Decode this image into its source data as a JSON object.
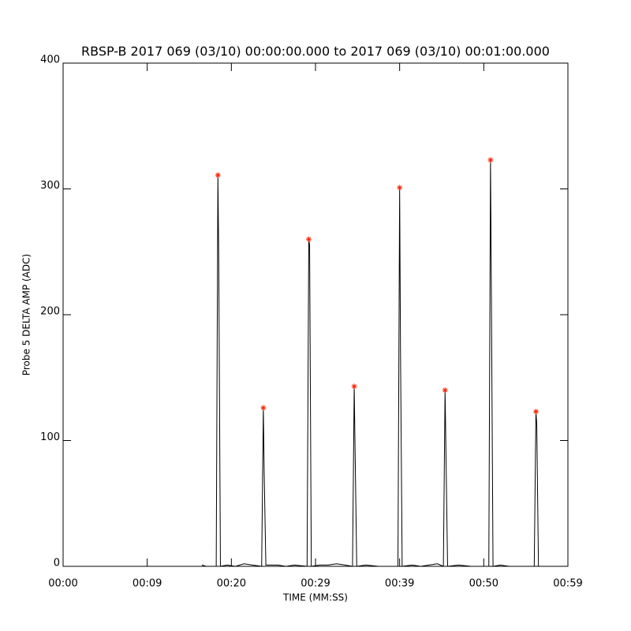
{
  "chart_data": {
    "type": "line",
    "title": "RBSP-B 2017 069 (03/10) 00:00:00.000 to 2017 069 (03/10) 00:01:00.000",
    "x_label": "TIME (MM:SS)",
    "y_label": "Probe 5 DELTA AMP (ADC)",
    "xlim": [
      0,
      60
    ],
    "xticks": [
      {
        "value": 0,
        "label": "00:00"
      },
      {
        "value": 10,
        "label": "00:09"
      },
      {
        "value": 20,
        "label": "00:20"
      },
      {
        "value": 30,
        "label": "00:29"
      },
      {
        "value": 40,
        "label": "00:39"
      },
      {
        "value": 50,
        "label": "00:50"
      },
      {
        "value": 60,
        "label": "00:59"
      }
    ],
    "ylim": [
      0,
      400
    ],
    "yticks": [
      0,
      100,
      200,
      300,
      400
    ],
    "series": [
      {
        "name": "amplitude",
        "color": "#000000",
        "marker": "none",
        "x": [
          16.5,
          17.0,
          18.0,
          18.2,
          18.4,
          18.5,
          18.7,
          19.5,
          20.5,
          21.5,
          22.5,
          23.6,
          23.8,
          23.9,
          24.1,
          25.5,
          26.5,
          27.5,
          29.0,
          29.2,
          29.3,
          29.5,
          30.5,
          31.5,
          32.5,
          33.5,
          34.4,
          34.6,
          34.7,
          34.9,
          36.0,
          37.5,
          39.8,
          40.0,
          40.1,
          40.3,
          41.5,
          42.5,
          43.5,
          44.5,
          45.2,
          45.4,
          45.5,
          45.7,
          47.0,
          48.5,
          50.6,
          50.8,
          50.9,
          51.1,
          52.0,
          53.0,
          56.0,
          56.2,
          56.3,
          56.5,
          57.0
        ],
        "values": [
          1,
          0,
          0,
          0,
          311,
          243,
          0,
          1,
          0,
          2,
          1,
          0,
          126,
          75,
          1,
          1,
          0,
          1,
          0,
          260,
          255,
          0,
          1,
          1,
          2,
          1,
          0,
          143,
          95,
          0,
          1,
          0,
          0,
          301,
          175,
          0,
          1,
          0,
          1,
          2,
          0,
          140,
          93,
          0,
          1,
          0,
          0,
          323,
          223,
          0,
          1,
          0,
          0,
          123,
          113,
          0,
          0
        ]
      },
      {
        "name": "peaks",
        "color": "#ff2000",
        "marker": "asterisk",
        "x": [
          18.4,
          23.8,
          29.2,
          34.6,
          40.0,
          45.4,
          50.8,
          56.2
        ],
        "values": [
          311,
          126,
          260,
          143,
          301,
          140,
          323,
          123
        ]
      }
    ]
  }
}
